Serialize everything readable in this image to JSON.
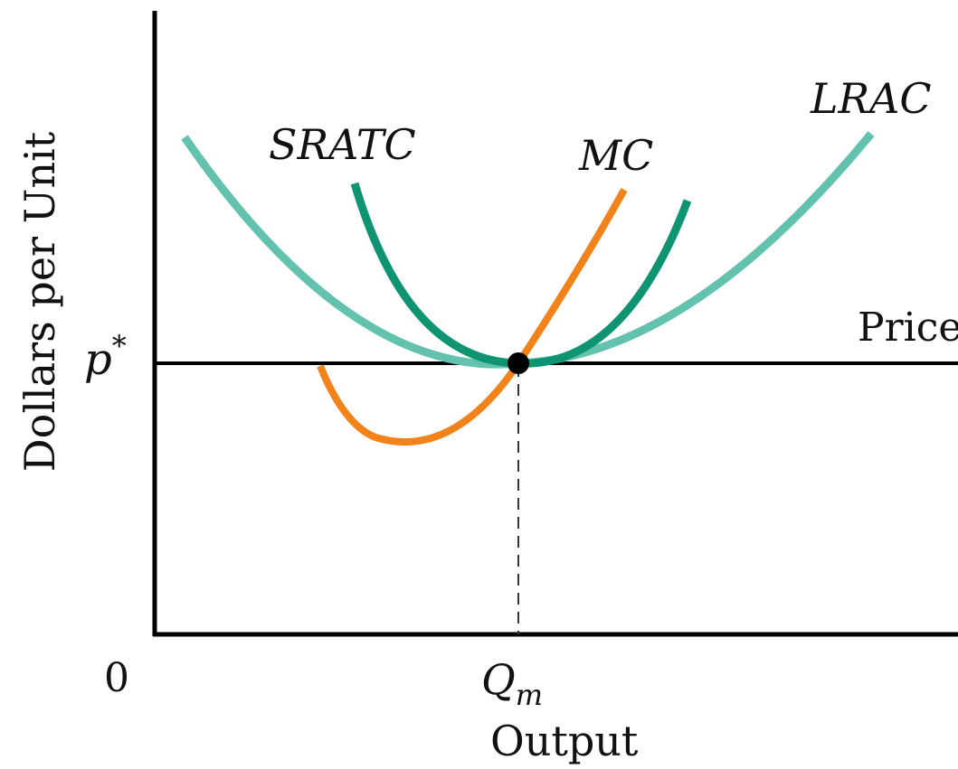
{
  "axes": {
    "y_label": "Dollars per Unit",
    "x_label": "Output",
    "origin_label": "0"
  },
  "price": {
    "line_label": "Price",
    "level_label_base": "p",
    "level_label_sup": "*"
  },
  "output_marker": {
    "label_base": "Q",
    "label_sub": "m"
  },
  "curves": {
    "lrac": {
      "label": "LRAC",
      "color": "#62c2ad"
    },
    "sratc": {
      "label": "SRATC",
      "color": "#0f9472"
    },
    "mc": {
      "label": "MC",
      "color": "#f2821a"
    }
  },
  "colors": {
    "axis": "#000000",
    "price_line": "#000000",
    "dashed": "#333333",
    "equilibrium_point": "#000000"
  }
}
